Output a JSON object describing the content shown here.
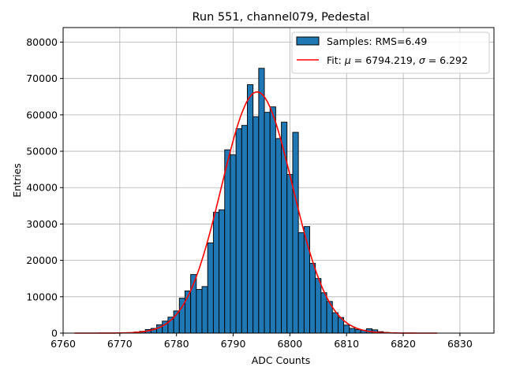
{
  "chart_data": {
    "type": "bar",
    "title": "Run 551, channel079, Pedestal",
    "xlabel": "ADC Counts",
    "ylabel": "Entries",
    "xlim": [
      6760,
      6836
    ],
    "ylim": [
      0,
      84000
    ],
    "xticks": [
      6760,
      6770,
      6780,
      6790,
      6800,
      6810,
      6820,
      6830
    ],
    "yticks": [
      0,
      10000,
      20000,
      30000,
      40000,
      50000,
      60000,
      70000,
      80000
    ],
    "grid": true,
    "legend_position": "top-right",
    "bar_color": "#1f77b4",
    "fit_color": "#ff0000",
    "histogram": {
      "name": "Samples: RMS=6.49",
      "bin_width": 1,
      "x": [
        6773,
        6774,
        6775,
        6776,
        6777,
        6778,
        6779,
        6780,
        6781,
        6782,
        6783,
        6784,
        6785,
        6786,
        6787,
        6788,
        6789,
        6790,
        6791,
        6792,
        6793,
        6794,
        6795,
        6796,
        6797,
        6798,
        6799,
        6800,
        6801,
        6802,
        6803,
        6804,
        6805,
        6806,
        6807,
        6808,
        6809,
        6810,
        6811,
        6812,
        6813,
        6814,
        6815,
        6816,
        6817
      ],
      "values": [
        300,
        500,
        1000,
        1300,
        2300,
        3300,
        4400,
        6100,
        9600,
        11600,
        16100,
        12000,
        12800,
        24800,
        33200,
        33900,
        50400,
        49000,
        56200,
        57100,
        68300,
        59500,
        72800,
        60700,
        62200,
        53500,
        58000,
        43600,
        55200,
        27600,
        29300,
        19200,
        15000,
        11100,
        8700,
        5600,
        4300,
        2200,
        1300,
        1000,
        800,
        1200,
        900,
        400,
        200
      ]
    },
    "fit": {
      "name_prefix": "Fit: ",
      "mu_symbol": "μ",
      "mu_text": " = 6794.219, ",
      "sigma_symbol": "σ",
      "sigma_text": " = 6.292",
      "mu": 6794.219,
      "sigma": 6.292,
      "amplitude": 66300,
      "x_range": [
        6762,
        6826
      ]
    }
  }
}
